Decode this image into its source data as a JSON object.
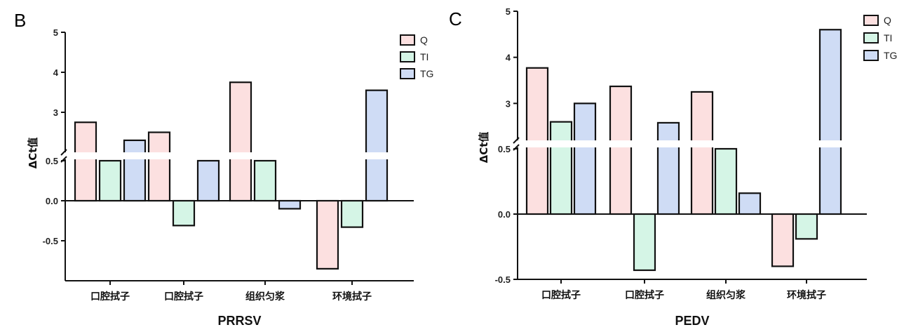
{
  "chart_data": [
    {
      "panel_label": "B",
      "type": "bar",
      "xlabel": "PRRSV",
      "ylabel": "ΔCt值",
      "categories": [
        "口腔拭子",
        "口腔拭子",
        "组织匀浆",
        "环境拭子"
      ],
      "series": [
        {
          "name": "Q",
          "values": [
            2.75,
            2.5,
            3.75,
            -0.85
          ]
        },
        {
          "name": "TI",
          "values": [
            0.5,
            -0.31,
            0.5,
            -0.33
          ]
        },
        {
          "name": "TG",
          "values": [
            2.3,
            0.5,
            -0.1,
            3.55
          ]
        }
      ],
      "yticks_lower": [
        "-0.5",
        "0.0",
        "0.5"
      ],
      "yticks_upper": [
        "3",
        "4",
        "5"
      ],
      "y_break": [
        0.5,
        2.0
      ],
      "legend_position": "top-right"
    },
    {
      "panel_label": "C",
      "type": "bar",
      "xlabel": "PEDV",
      "ylabel": "ΔCt值",
      "categories": [
        "口腔拭子",
        "口腔拭子",
        "组织匀浆",
        "环境拭子"
      ],
      "series": [
        {
          "name": "Q",
          "values": [
            3.77,
            3.37,
            3.25,
            -0.4
          ]
        },
        {
          "name": "TI",
          "values": [
            2.6,
            -0.43,
            0.5,
            -0.19
          ]
        },
        {
          "name": "TG",
          "values": [
            3.0,
            2.58,
            0.16,
            4.6
          ]
        }
      ],
      "yticks_lower": [
        "-0.5",
        "0.0",
        "0.5"
      ],
      "yticks_upper": [
        "3",
        "4",
        "5"
      ],
      "y_break": [
        0.5,
        2.0
      ],
      "legend_position": "top-right"
    }
  ],
  "colors": {
    "Q": "#fce0e0",
    "TI": "#d5f5e6",
    "TG": "#cfdcf5",
    "stroke": "#111111"
  }
}
